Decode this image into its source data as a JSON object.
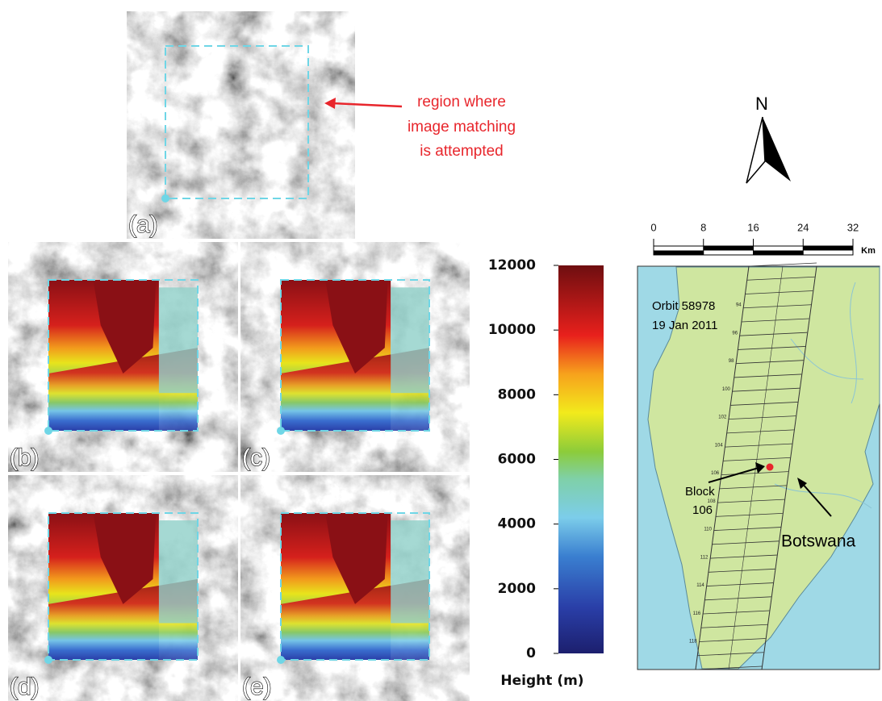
{
  "panels": [
    "(a)",
    "(b)",
    "(c)",
    "(d)",
    "(e)"
  ],
  "annotation": [
    "region where",
    "image matching",
    "is attempted"
  ],
  "colorbar": {
    "lim": [
      0,
      12000
    ],
    "ticks": [
      0,
      2000,
      4000,
      6000,
      8000,
      10000,
      12000
    ],
    "label": "Height (m)"
  },
  "north": "N",
  "scale_bar": {
    "lim": [
      0,
      32
    ],
    "ticks": [
      0,
      8,
      16,
      24,
      32
    ],
    "unit": "Km"
  },
  "map": {
    "orbit": "Orbit 58978",
    "date": "19 Jan 2011",
    "block": [
      "Block",
      "106"
    ],
    "region": "Botswana",
    "block_numbers": [
      "94",
      "96",
      "98",
      "100",
      "102",
      "104",
      "106",
      "108",
      "110",
      "112",
      "114",
      "116",
      "118"
    ]
  }
}
